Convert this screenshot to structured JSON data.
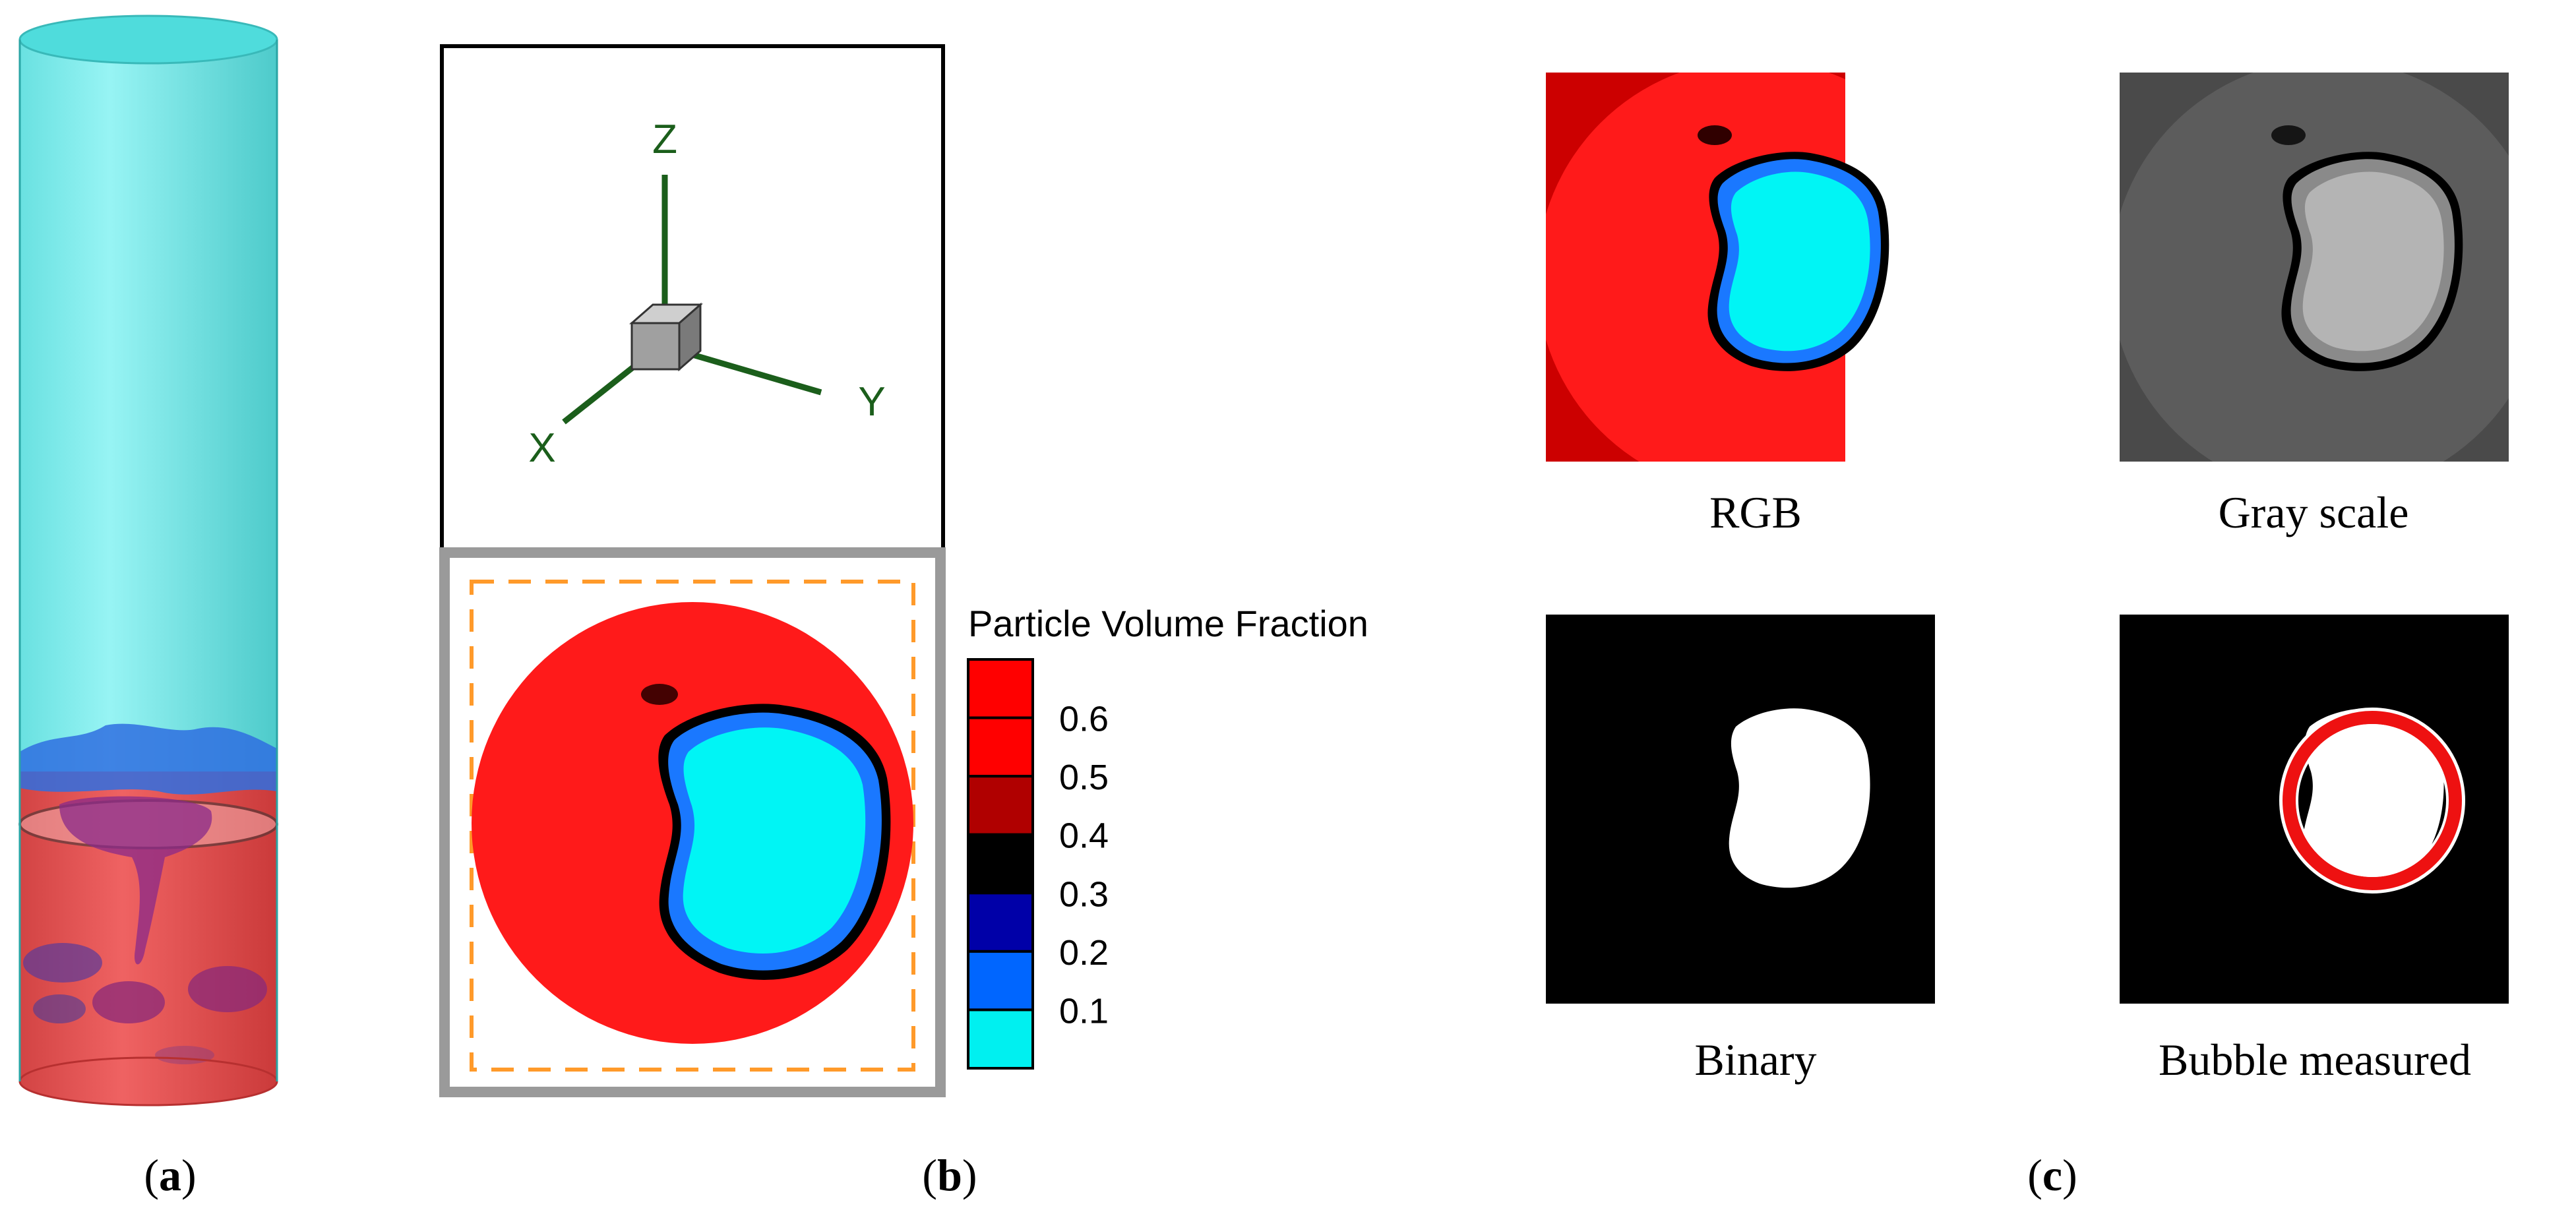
{
  "panels": {
    "a": {
      "caption_letter": "a"
    },
    "b": {
      "caption_letter": "b",
      "axes": {
        "z": "Z",
        "x": "X",
        "y": "Y"
      },
      "legend": {
        "title": "Particle Volume Fraction",
        "ticks": [
          "0.6",
          "0.5",
          "0.4",
          "0.3",
          "0.2",
          "0.1"
        ],
        "colors": [
          "#ff0000",
          "#ff0000",
          "#b00000",
          "#000000",
          "#0000a8",
          "#0066ff",
          "#00f0f0"
        ]
      }
    },
    "c": {
      "caption_letter": "c",
      "images": {
        "rgb": "RGB",
        "gray": "Gray scale",
        "binary": "Binary",
        "measured": "Bubble measured"
      }
    }
  },
  "colors": {
    "particle_red": "#ff1a1a",
    "bubble_cyan": "#00f5f5",
    "bubble_blue": "#1a78ff",
    "gas_cyan": "#6fe6e6",
    "axis_green": "#1b5e1b",
    "dash_orange": "#ff9a2a"
  }
}
